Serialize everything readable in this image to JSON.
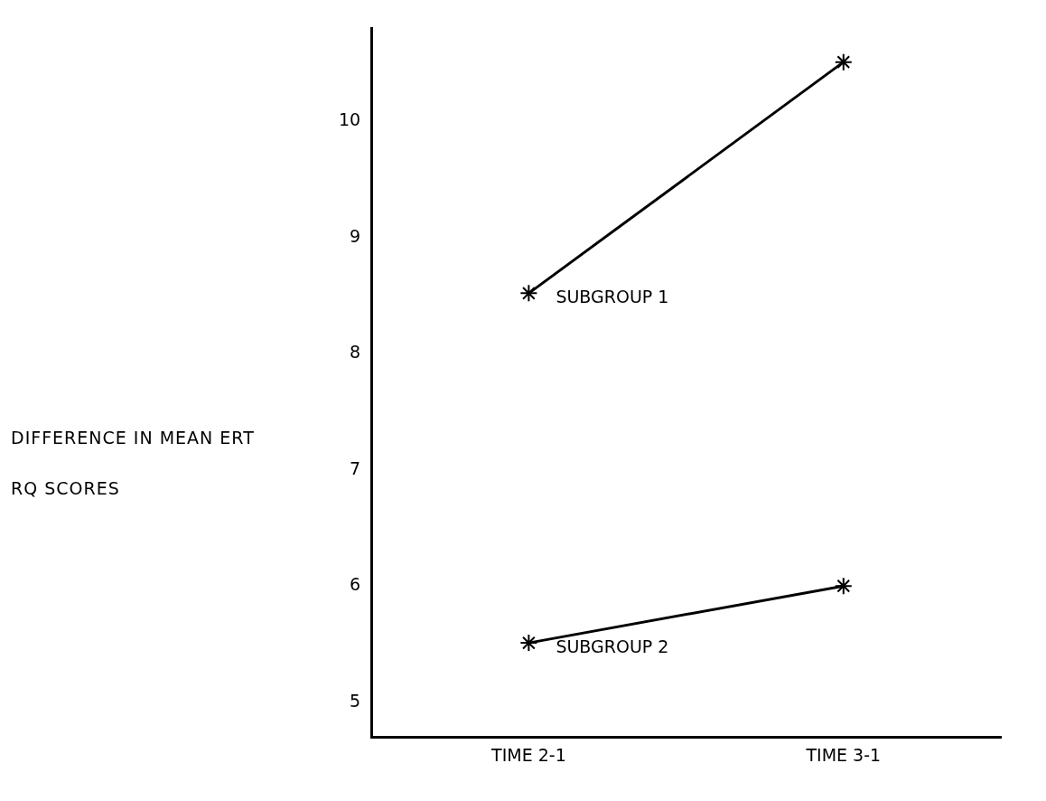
{
  "chart_data": {
    "type": "line",
    "ylabel": "DIFFERENCE IN MEAN ERT RQ SCORES",
    "categories": [
      "TIME 2-1",
      "TIME 3-1"
    ],
    "series": [
      {
        "name": "SUBGROUP 1",
        "color": "#000000",
        "values": [
          8.52,
          10.51
        ]
      },
      {
        "name": "SUBGROUP 2",
        "color": "#000000",
        "values": [
          5.51,
          6.0
        ]
      }
    ],
    "ylim": [
      4.7,
      10.8
    ],
    "yticks": [
      5,
      6,
      7,
      8,
      9,
      10
    ],
    "grid": false,
    "legend": false,
    "marker": "cross",
    "line_style": "solid"
  }
}
